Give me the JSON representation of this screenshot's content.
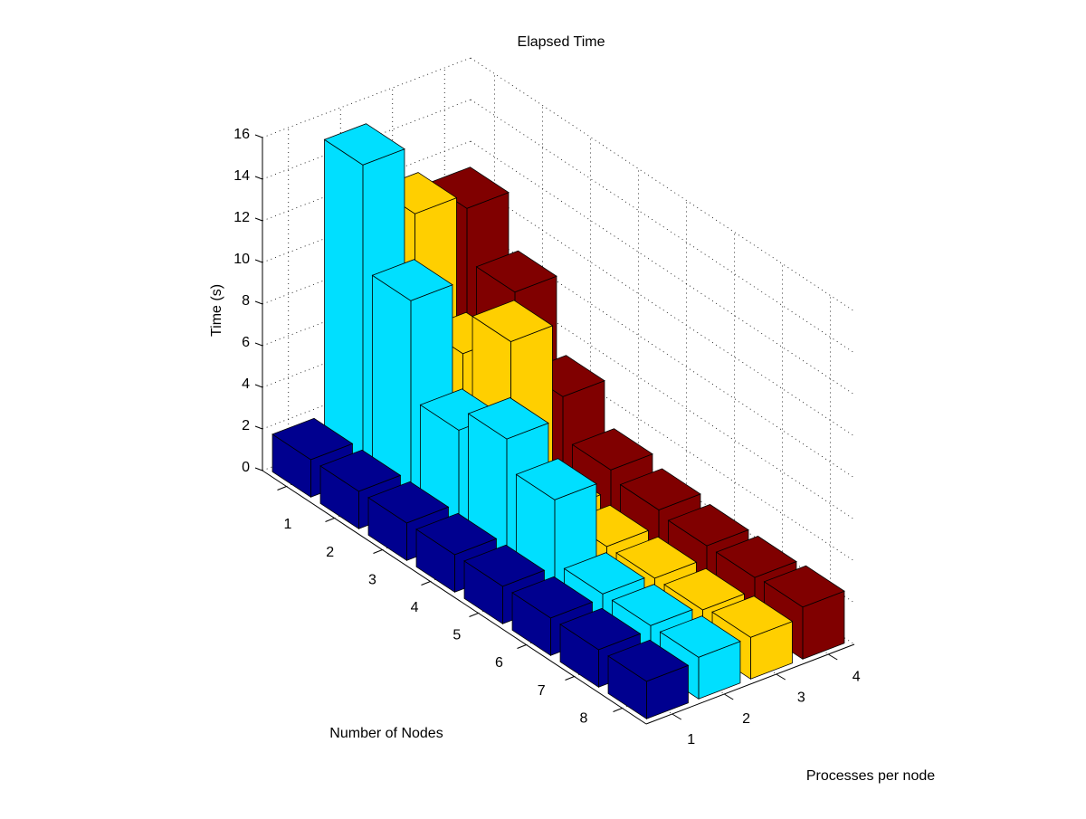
{
  "chart_data": {
    "type": "bar3",
    "title": "Elapsed Time",
    "xlabel": "Number of Nodes",
    "ylabel": "Processes per node",
    "zlabel": "Time (s)",
    "categories": [
      "1",
      "2",
      "3",
      "4",
      "5",
      "6",
      "7",
      "8"
    ],
    "series": [
      {
        "name": "1",
        "color": "#00008f",
        "values": [
          1.8,
          1.8,
          1.8,
          1.8,
          1.8,
          1.8,
          1.8,
          1.8
        ]
      },
      {
        "name": "2",
        "color": "#00dfff",
        "values": [
          15,
          10,
          5.3,
          6.4,
          5,
          2,
          2,
          2
        ]
      },
      {
        "name": "3",
        "color": "#ffcf00",
        "values": [
          11.7,
          6.5,
          8.6,
          2,
          1.8,
          1.8,
          1.8,
          2
        ]
      },
      {
        "name": "4",
        "color": "#800000",
        "values": [
          11,
          8.5,
          5,
          3,
          2.6,
          2.4,
          2.4,
          2.5
        ]
      }
    ],
    "zlim": [
      0,
      16
    ],
    "zticks": [
      0,
      2,
      4,
      6,
      8,
      10,
      12,
      14,
      16
    ],
    "grid": true
  }
}
